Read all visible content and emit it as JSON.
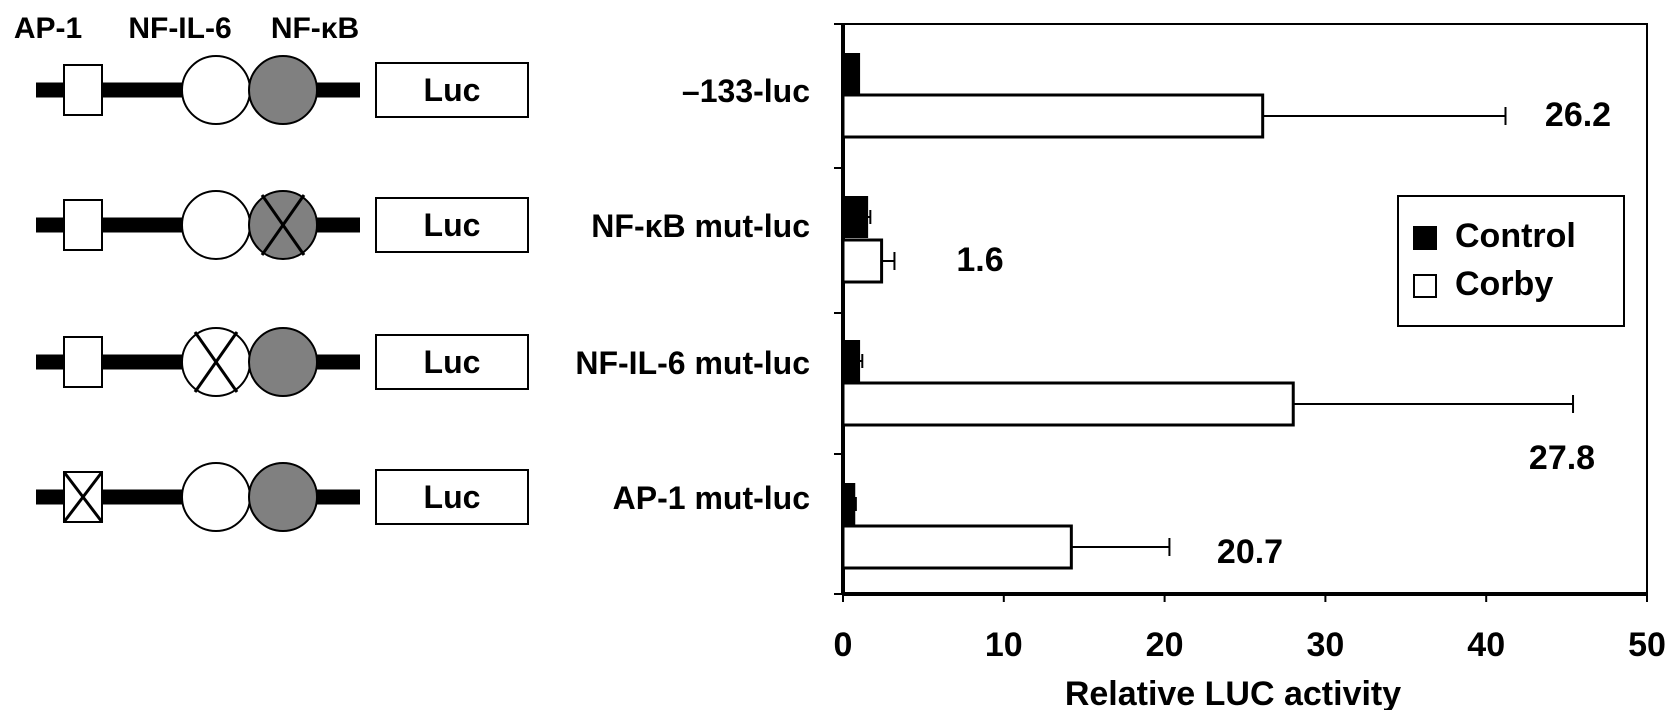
{
  "diagram": {
    "element_labels": [
      "AP-1",
      "NF-IL-6",
      "NF-κB"
    ],
    "reporter_label": "Luc",
    "constructs": [
      {
        "label": "–133-luc",
        "mutated": ""
      },
      {
        "label": "NF-κB mut-luc",
        "mutated": "NF-κB"
      },
      {
        "label": "NF-IL-6 mut-luc",
        "mutated": "NF-IL-6"
      },
      {
        "label": "AP-1 mut-luc",
        "mutated": "AP-1"
      }
    ]
  },
  "chart_data": {
    "type": "bar",
    "orientation": "horizontal",
    "categories": [
      "–133-luc",
      "NF-κB mut-luc",
      "NF-IL-6 mut-luc",
      "AP-1 mut-luc"
    ],
    "series": [
      {
        "name": "Control",
        "values": [
          1.0,
          1.5,
          1.0,
          0.7
        ],
        "errors": [
          0.0,
          0.2,
          0.2,
          0.1
        ],
        "color": "#000000"
      },
      {
        "name": "Corby",
        "values": [
          26.1,
          2.4,
          28.0,
          14.2
        ],
        "errors": [
          15.1,
          0.8,
          17.4,
          6.1
        ],
        "color": "#ffffff"
      }
    ],
    "value_labels": [
      "26.2",
      "1.6",
      "27.8",
      "20.7"
    ],
    "xlabel": "Relative LUC activity",
    "xlim": [
      0,
      50
    ],
    "xticks": [
      "0",
      "10",
      "20",
      "30",
      "40",
      "50"
    ],
    "legend": {
      "entries": [
        "Control",
        "Corby"
      ],
      "position": "right"
    },
    "grid": false
  }
}
